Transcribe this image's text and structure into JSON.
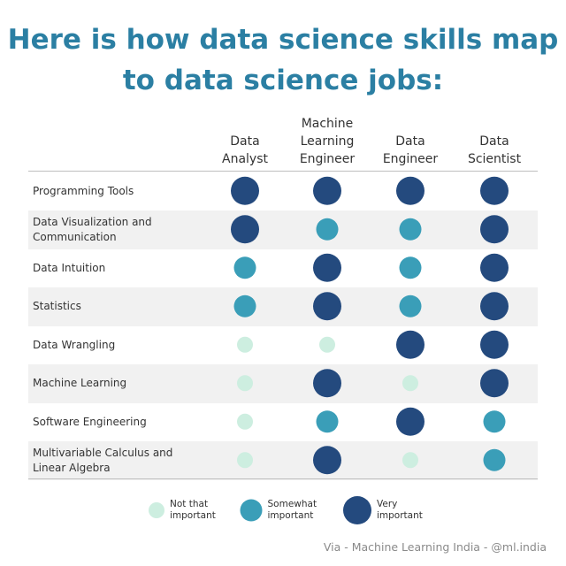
{
  "title": "Here is how data science skills map to data science jobs:",
  "footer": "Via - Machine Learning India - @ml.india",
  "colors": {
    "title": "#2b7fa3",
    "not_that_important": "#cdeee0",
    "somewhat_important": "#3a9eb8",
    "very_important": "#244a7e"
  },
  "chart_data": {
    "type": "table",
    "columns": [
      "Data Analyst",
      "Machine Learning Engineer",
      "Data Engineer",
      "Data Scientist"
    ],
    "column_header_lines": [
      [
        "Data",
        "Analyst"
      ],
      [
        "Machine",
        "Learning",
        "Engineer"
      ],
      [
        "Data",
        "Engineer"
      ],
      [
        "Data",
        "Scientist"
      ]
    ],
    "rows": [
      {
        "label": "Programming Tools",
        "label_lines": [
          "Programming Tools"
        ],
        "values": [
          3,
          3,
          3,
          3
        ]
      },
      {
        "label": "Data Visualization and Communication",
        "label_lines": [
          "Data Visualization and",
          "Communication"
        ],
        "values": [
          3,
          2,
          2,
          3
        ]
      },
      {
        "label": "Data Intuition",
        "label_lines": [
          "Data Intuition"
        ],
        "values": [
          2,
          3,
          2,
          3
        ]
      },
      {
        "label": "Statistics",
        "label_lines": [
          "Statistics"
        ],
        "values": [
          2,
          3,
          2,
          3
        ]
      },
      {
        "label": "Data Wrangling",
        "label_lines": [
          "Data Wrangling"
        ],
        "values": [
          1,
          1,
          3,
          3
        ]
      },
      {
        "label": "Machine Learning",
        "label_lines": [
          "Machine Learning"
        ],
        "values": [
          1,
          3,
          1,
          3
        ]
      },
      {
        "label": "Software Engineering",
        "label_lines": [
          "Software Engineering"
        ],
        "values": [
          1,
          2,
          3,
          2
        ]
      },
      {
        "label": "Multivariable Calculus and Linear Algebra",
        "label_lines": [
          "Multivariable Calculus and",
          "Linear Algebra"
        ],
        "values": [
          1,
          3,
          1,
          2
        ]
      }
    ],
    "levels": [
      {
        "value": 1,
        "label": "Not that important",
        "label_lines": [
          "Not that",
          "important"
        ]
      },
      {
        "value": 2,
        "label": "Somewhat important",
        "label_lines": [
          "Somewhat",
          "important"
        ]
      },
      {
        "value": 3,
        "label": "Very important",
        "label_lines": [
          "Very",
          "important"
        ]
      }
    ]
  }
}
